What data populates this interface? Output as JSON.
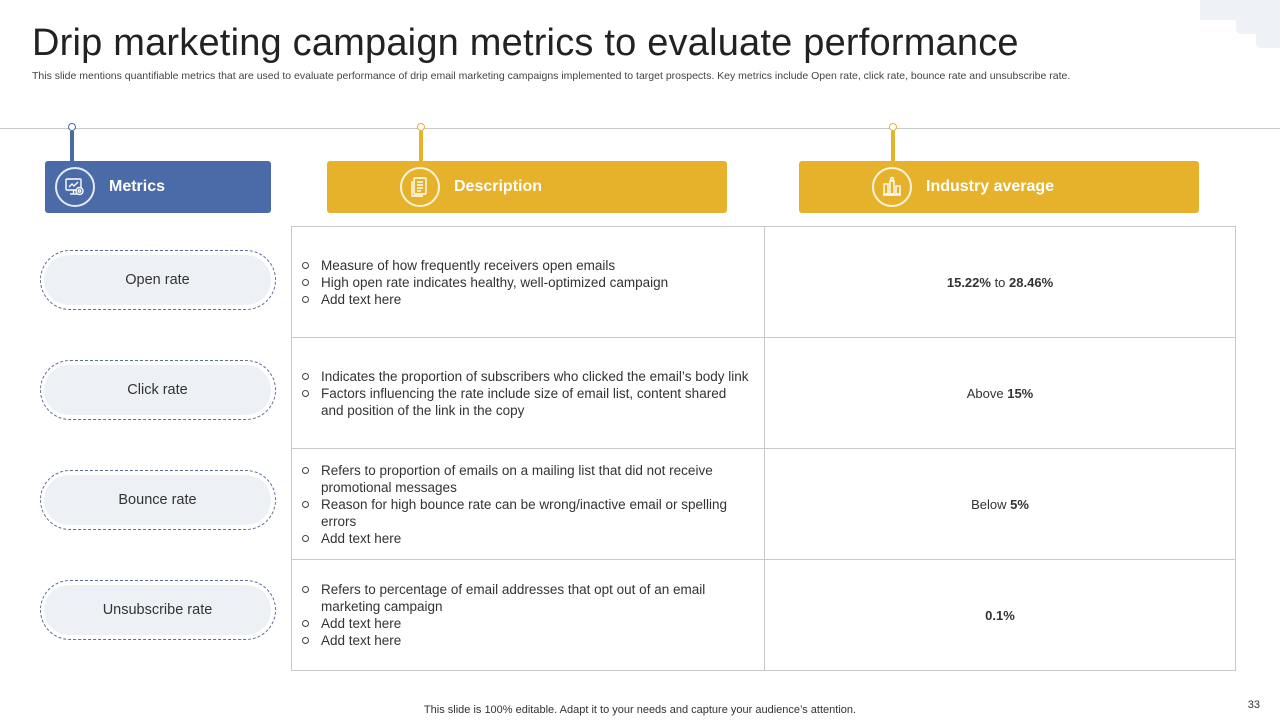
{
  "slide": {
    "title": "Drip marketing campaign metrics to evaluate performance",
    "subtitle": "This slide mentions quantifiable metrics that are used to evaluate performance of drip email marketing campaigns implemented  to target prospects. Key metrics include Open rate, click rate, bounce rate and unsubscribe rate.",
    "footer": "This slide is 100% editable. Adapt it to your needs and capture your audience’s attention.",
    "page_number": "33"
  },
  "headers": {
    "metrics": {
      "label": "Metrics",
      "icon": "monitor-gear-icon"
    },
    "description": {
      "label": "Description",
      "icon": "document-icon"
    },
    "industry_average": {
      "label": "Industry average",
      "icon": "money-stack-icon"
    }
  },
  "colors": {
    "metrics_header": "#4b6aa8",
    "column_header": "#e6b22c",
    "metric_pill": "#edf1f5"
  },
  "rows": [
    {
      "metric": "Open rate",
      "bullets": [
        "Measure of how frequently receivers open emails",
        "High open rate indicates healthy, well-optimized campaign",
        "Add text here"
      ],
      "avg_prefix": "",
      "avg_bold": "15.22%",
      "avg_mid": " to ",
      "avg_bold2": "28.46%"
    },
    {
      "metric": "Click rate",
      "bullets": [
        "Indicates the proportion of subscribers who clicked the email’s body link",
        "Factors influencing  the rate include size of email list, content shared and position of the link in the copy"
      ],
      "avg_prefix": "Above ",
      "avg_bold": "15%",
      "avg_mid": "",
      "avg_bold2": ""
    },
    {
      "metric": "Bounce rate",
      "bullets": [
        "Refers to proportion of emails on a mailing list that did not receive promotional messages",
        "Reason for high bounce rate can be wrong/inactive email or spelling errors",
        "Add text here"
      ],
      "avg_prefix": "Below ",
      "avg_bold": "5%",
      "avg_mid": "",
      "avg_bold2": ""
    },
    {
      "metric": "Unsubscribe rate",
      "bullets": [
        "Refers to percentage of email addresses that opt out of an email marketing campaign",
        "Add text here",
        "Add text here"
      ],
      "avg_prefix": "",
      "avg_bold": "0.1%",
      "avg_mid": "",
      "avg_bold2": ""
    }
  ]
}
